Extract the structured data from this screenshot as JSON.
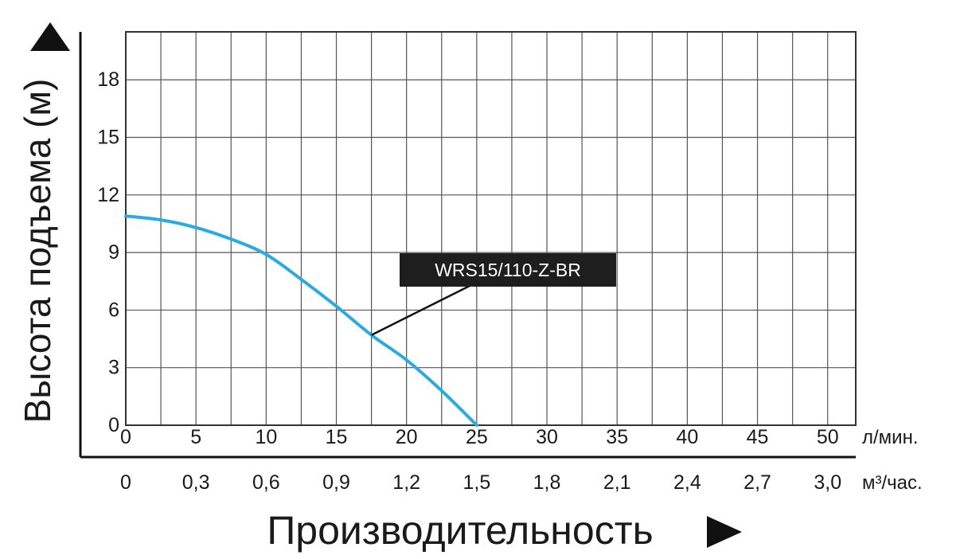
{
  "chart_data": {
    "type": "line",
    "ylabel": "Высота подъема (м)",
    "xlabel": "Производительность",
    "x_unit_primary": "л/мин.",
    "x_unit_secondary": "м³/час.",
    "xlim": [
      0,
      52
    ],
    "ylim": [
      0,
      20.5
    ],
    "grid": true,
    "x_ticks_primary": [
      "0",
      "5",
      "10",
      "15",
      "20",
      "25",
      "30",
      "35",
      "40",
      "45",
      "50"
    ],
    "x_ticks_primary_values": [
      0,
      5,
      10,
      15,
      20,
      25,
      30,
      35,
      40,
      45,
      50
    ],
    "x_ticks_secondary": [
      "0",
      "0,3",
      "0,6",
      "0,9",
      "1,2",
      "1,5",
      "1,8",
      "2,1",
      "2,4",
      "2,7",
      "3,0"
    ],
    "y_ticks": [
      "0",
      "3",
      "6",
      "9",
      "12",
      "15",
      "18"
    ],
    "y_ticks_values": [
      0,
      3,
      6,
      9,
      12,
      15,
      18
    ],
    "series": [
      {
        "name": "WRS15/110-Z-BR",
        "color": "#29abe2",
        "x": [
          0,
          2.5,
          5,
          7.5,
          10,
          12.5,
          15,
          17.5,
          20,
          22.5,
          25
        ],
        "y": [
          10.9,
          10.7,
          10.3,
          9.7,
          8.9,
          7.6,
          6.2,
          4.7,
          3.4,
          1.8,
          0
        ]
      }
    ],
    "annotation": {
      "text": "WRS15/110-Z-BR",
      "x": 17.5,
      "y": 4.7
    }
  }
}
